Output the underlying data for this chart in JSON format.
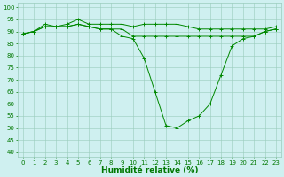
{
  "xlabel": "Humidité relative (%)",
  "xlim": [
    -0.5,
    23.5
  ],
  "ylim": [
    38,
    102
  ],
  "yticks": [
    40,
    45,
    50,
    55,
    60,
    65,
    70,
    75,
    80,
    85,
    90,
    95,
    100
  ],
  "xticks": [
    0,
    1,
    2,
    3,
    4,
    5,
    6,
    7,
    8,
    9,
    10,
    11,
    12,
    13,
    14,
    15,
    16,
    17,
    18,
    19,
    20,
    21,
    22,
    23
  ],
  "bg_color": "#cff0f0",
  "grid_color": "#99ccbb",
  "line_color": "#008800",
  "series_top": [
    89,
    90,
    93,
    92,
    93,
    95,
    93,
    93,
    93,
    93,
    92,
    93,
    93,
    93,
    93,
    92,
    91,
    91,
    91,
    91,
    91,
    91,
    91,
    92
  ],
  "series_mid": [
    89,
    90,
    92,
    92,
    92,
    93,
    92,
    91,
    91,
    91,
    88,
    88,
    88,
    88,
    88,
    88,
    88,
    88,
    88,
    88,
    88,
    88,
    90,
    91
  ],
  "series_low": [
    89,
    90,
    92,
    92,
    92,
    93,
    92,
    91,
    91,
    88,
    87,
    79,
    65,
    51,
    50,
    53,
    55,
    60,
    72,
    84,
    87,
    88,
    90,
    91
  ],
  "font_color": "#007700",
  "tick_fontsize": 5.0,
  "xlabel_fontsize": 6.5
}
